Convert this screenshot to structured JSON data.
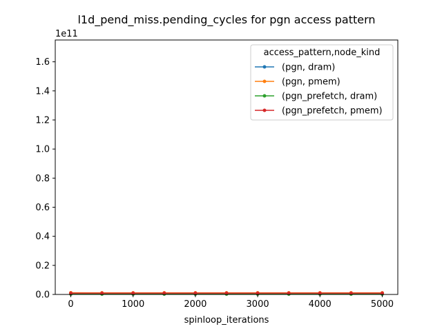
{
  "chart_data": {
    "type": "line",
    "title": "l1d_pend_miss.pending_cycles for pgn access pattern",
    "xlabel": "spinloop_iterations",
    "ylabel": "",
    "y_offset_label": "1e11",
    "y_scale": 100000000000,
    "xlim": [
      -250,
      5250
    ],
    "ylim": [
      0,
      175000000000
    ],
    "x_ticks": [
      0,
      1000,
      2000,
      3000,
      4000,
      5000
    ],
    "x_tick_labels": [
      "0",
      "1000",
      "2000",
      "3000",
      "4000",
      "5000"
    ],
    "y_ticks": [
      0,
      20000000000,
      40000000000,
      60000000000,
      80000000000,
      100000000000,
      120000000000,
      140000000000,
      160000000000
    ],
    "y_tick_labels": [
      "0.0",
      "0.2",
      "0.4",
      "0.6",
      "0.8",
      "1.0",
      "1.2",
      "1.4",
      "1.6"
    ],
    "grid": false,
    "legend": {
      "title": "access_pattern,node_kind",
      "placement": "top-right"
    },
    "x": [
      0,
      500,
      1000,
      1500,
      2000,
      2500,
      3000,
      3500,
      4000,
      4500,
      5000
    ],
    "series": [
      {
        "name": "(pgn, dram)",
        "color": "#1f77b4",
        "values": [
          300000000,
          300000000,
          300000000,
          300000000,
          300000000,
          300000000,
          300000000,
          300000000,
          300000000,
          300000000,
          300000000
        ]
      },
      {
        "name": "(pgn, pmem)",
        "color": "#ff7f0e",
        "values": [
          1200000000,
          1100000000,
          1100000000,
          1100000000,
          1100000000,
          1100000000,
          1100000000,
          1100000000,
          1100000000,
          1100000000,
          1100000000
        ]
      },
      {
        "name": "(pgn_prefetch, dram)",
        "color": "#2ca02c",
        "values": [
          250000000,
          250000000,
          250000000,
          250000000,
          250000000,
          250000000,
          250000000,
          250000000,
          250000000,
          250000000,
          250000000
        ]
      },
      {
        "name": "(pgn_prefetch, pmem)",
        "color": "#d62728",
        "values": [
          900000000,
          900000000,
          900000000,
          900000000,
          900000000,
          900000000,
          900000000,
          900000000,
          900000000,
          900000000,
          900000000
        ]
      }
    ]
  }
}
